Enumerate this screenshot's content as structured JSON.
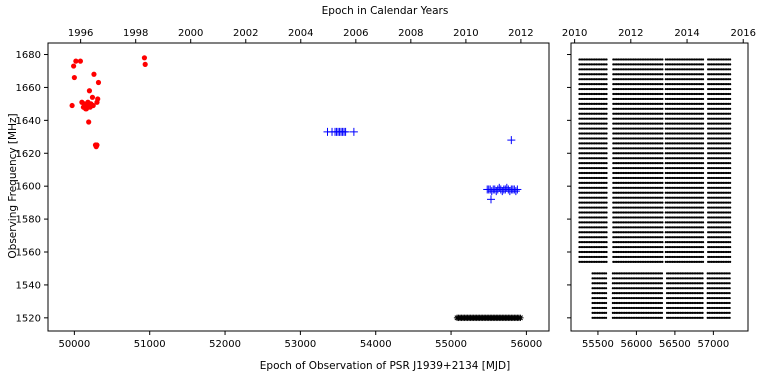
{
  "figure": {
    "top_title": "Epoch in Calendar Years",
    "bottom_title": "Epoch of Observation of PSR J1939+2134 [MJD]",
    "ylabel": "Observing Frequency [MHz]"
  },
  "chart_data": [
    {
      "type": "scatter",
      "title": "",
      "xlabel": "Epoch of Observation of PSR J1939+2134 [MJD]",
      "ylabel": "Observing Frequency [MHz]",
      "xlim": [
        49650,
        56300
      ],
      "ylim": [
        1512,
        1687
      ],
      "x_ticks": [
        50000,
        51000,
        52000,
        53000,
        54000,
        55000,
        56000
      ],
      "y_ticks": [
        1520,
        1540,
        1560,
        1580,
        1600,
        1620,
        1640,
        1660,
        1680
      ],
      "top_axis": {
        "label": "Epoch in Calendar Years",
        "ticks": [
          {
            "label": "1996",
            "mjd": 50083
          },
          {
            "label": "1998",
            "mjd": 50814
          },
          {
            "label": "2000",
            "mjd": 51544
          },
          {
            "label": "2002",
            "mjd": 52275
          },
          {
            "label": "2004",
            "mjd": 53005
          },
          {
            "label": "2006",
            "mjd": 53736
          },
          {
            "label": "2008",
            "mjd": 54466
          },
          {
            "label": "2010",
            "mjd": 55197
          },
          {
            "label": "2012",
            "mjd": 55927
          }
        ]
      },
      "series": [
        {
          "color": "#ff0000",
          "marker": "circle",
          "points": [
            [
              49970,
              1649
            ],
            [
              49990,
              1673
            ],
            [
              50000,
              1666
            ],
            [
              50020,
              1676
            ],
            [
              50080,
              1676
            ],
            [
              50100,
              1651
            ],
            [
              50120,
              1648
            ],
            [
              50130,
              1650
            ],
            [
              50150,
              1647
            ],
            [
              50160,
              1647
            ],
            [
              50170,
              1649
            ],
            [
              50180,
              1651
            ],
            [
              50190,
              1639
            ],
            [
              50200,
              1658
            ],
            [
              50210,
              1648
            ],
            [
              50220,
              1650
            ],
            [
              50240,
              1654
            ],
            [
              50250,
              1649
            ],
            [
              50260,
              1668
            ],
            [
              50280,
              1625
            ],
            [
              50290,
              1624
            ],
            [
              50300,
              1625
            ],
            [
              50300,
              1651
            ],
            [
              50310,
              1653
            ],
            [
              50320,
              1663
            ],
            [
              50930,
              1678
            ],
            [
              50940,
              1674
            ]
          ]
        },
        {
          "color": "#0000ff",
          "marker": "plus",
          "points": [
            [
              53360,
              1633
            ],
            [
              53420,
              1633
            ],
            [
              53460,
              1633
            ],
            [
              53480,
              1633
            ],
            [
              53500,
              1633
            ],
            [
              53520,
              1633
            ],
            [
              53540,
              1633
            ],
            [
              53560,
              1633
            ],
            [
              53580,
              1633
            ],
            [
              53600,
              1633
            ],
            [
              53710,
              1633
            ],
            [
              55480,
              1598
            ],
            [
              55500,
              1598
            ],
            [
              55520,
              1598
            ],
            [
              55540,
              1597
            ],
            [
              55560,
              1598
            ],
            [
              55580,
              1598
            ],
            [
              55600,
              1597
            ],
            [
              55620,
              1598
            ],
            [
              55640,
              1599
            ],
            [
              55660,
              1598
            ],
            [
              55680,
              1597
            ],
            [
              55700,
              1598
            ],
            [
              55720,
              1598
            ],
            [
              55740,
              1599
            ],
            [
              55760,
              1598
            ],
            [
              55780,
              1597
            ],
            [
              55800,
              1598
            ],
            [
              55820,
              1598
            ],
            [
              55840,
              1598
            ],
            [
              55860,
              1597
            ],
            [
              55880,
              1598
            ],
            [
              55530,
              1592
            ],
            [
              55800,
              1628
            ]
          ]
        },
        {
          "color": "#000000",
          "marker": "star",
          "freq": 1520,
          "x_from": 55080,
          "x_to": 55930,
          "x_step": 20
        }
      ]
    },
    {
      "type": "scatter",
      "title": "",
      "xlabel": "",
      "ylabel": "",
      "xlim": [
        55150,
        57450
      ],
      "ylim": [
        1512,
        1687
      ],
      "x_ticks": [
        55500,
        56000,
        56500,
        57000
      ],
      "y_ticks": [
        1520,
        1540,
        1560,
        1580,
        1600,
        1620,
        1640,
        1660,
        1680
      ],
      "top_axis": {
        "ticks": [
          {
            "label": "2010",
            "mjd": 55197
          },
          {
            "label": "2012",
            "mjd": 55927
          },
          {
            "label": "2014",
            "mjd": 56658
          },
          {
            "label": "2016",
            "mjd": 57388
          }
        ]
      },
      "series": [
        {
          "color": "#000000",
          "marker": "dot",
          "x_from": 55260,
          "x_to": 57230,
          "x_step": 22,
          "channels_from": 1554,
          "channels_to": 1678,
          "channel_step": 3,
          "late_channels_from": 1520,
          "late_channels_to": 1548,
          "late_start": 55430,
          "gaps": [
            [
              55620,
              55680
            ],
            [
              56350,
              56380
            ],
            [
              56880,
              56910
            ]
          ]
        }
      ]
    }
  ]
}
